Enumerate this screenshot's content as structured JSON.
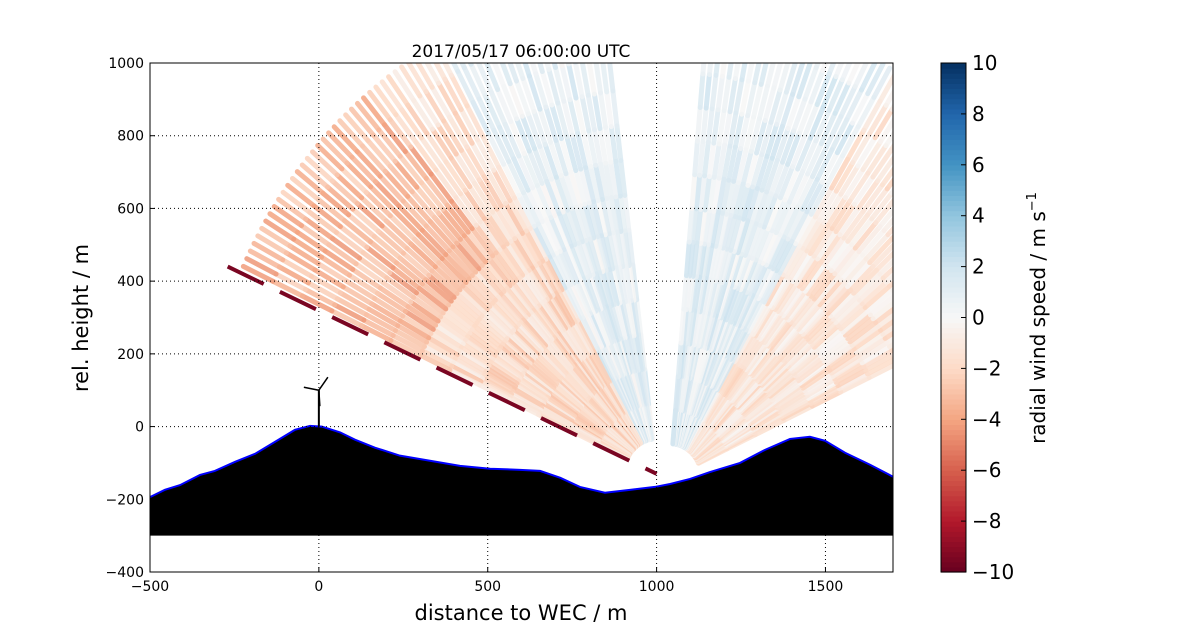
{
  "chart_data": {
    "type": "heatmap",
    "title": "2017/05/17 06:00:00 UTC",
    "xlabel": "distance to WEC / m",
    "ylabel": "rel. height / m",
    "xlim": [
      -500,
      1700
    ],
    "ylim": [
      -400,
      1000
    ],
    "xticks": [
      -500,
      0,
      500,
      1000,
      1500
    ],
    "yticks": [
      -400,
      -200,
      0,
      200,
      400,
      600,
      800,
      1000
    ],
    "grid": true,
    "colorbar": {
      "label": "radial wind speed / m s",
      "label_superscript": "−1",
      "range": [
        -10,
        10
      ],
      "ticks": [
        10,
        8,
        6,
        4,
        2,
        0,
        -2,
        -4,
        -6,
        -8,
        -10
      ],
      "colormap": "RdBu",
      "colors": [
        "#67001f",
        "#b2182b",
        "#d6604d",
        "#f4a582",
        "#fddbc7",
        "#f7f7f7",
        "#d1e5f0",
        "#92c5de",
        "#4393c3",
        "#2166ac",
        "#053061"
      ]
    },
    "terrain": {
      "x": [
        -500,
        -456,
        -411,
        -352,
        -308,
        -248,
        -189,
        -130,
        -71,
        -26,
        9,
        63,
        107,
        166,
        240,
        329,
        418,
        507,
        596,
        655,
        715,
        773,
        847,
        921,
        995,
        1040,
        1099,
        1158,
        1247,
        1321,
        1395,
        1454,
        1499,
        1558,
        1632,
        1700
      ],
      "y": [
        -194,
        -174,
        -161,
        -133,
        -122,
        -97,
        -75,
        -42,
        -9,
        2,
        0,
        -16,
        -36,
        -58,
        -80,
        -94,
        -108,
        -116,
        -119,
        -122,
        -141,
        -166,
        -182,
        -174,
        -166,
        -158,
        -144,
        -125,
        -100,
        -64,
        -34,
        -28,
        -39,
        -72,
        -105,
        -138
      ],
      "base": -300,
      "fill": "#000000",
      "edge": "#0000ff"
    },
    "turbine": {
      "x": 0,
      "hub_height": 100
    },
    "scans": [
      {
        "origin": [
          1000,
          -130
        ],
        "angle_range_deg": [
          97,
          155
        ],
        "range_m": 1350
      },
      {
        "origin": [
          1040,
          -140
        ],
        "angle_range_deg": [
          25,
          85
        ],
        "range_m": 1300
      }
    ]
  }
}
